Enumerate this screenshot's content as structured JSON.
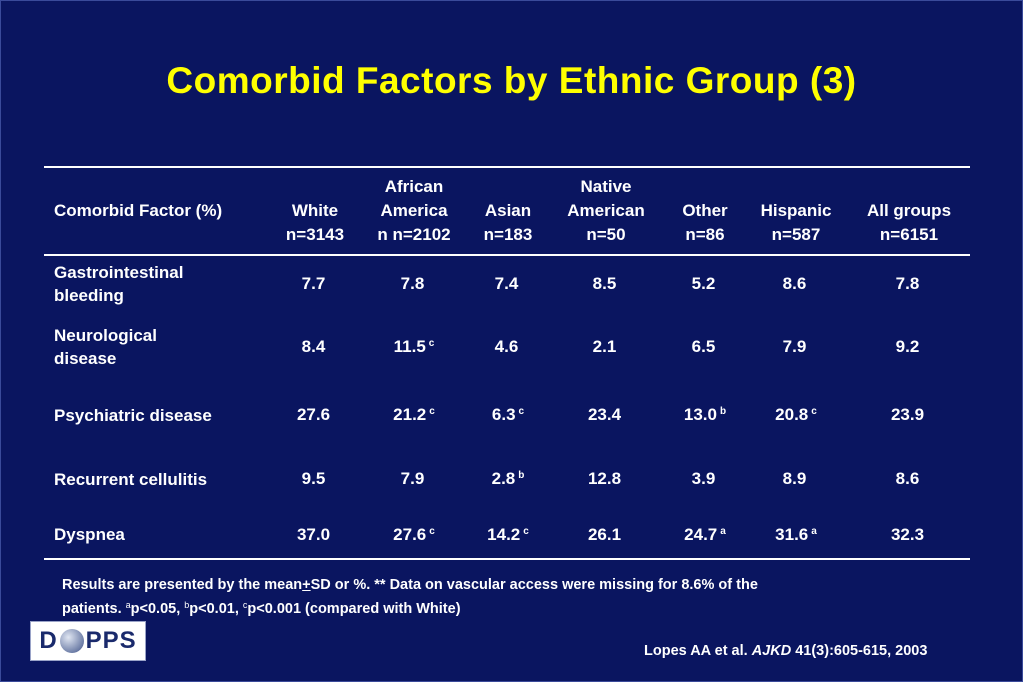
{
  "title": "Comorbid Factors by Ethnic Group (3)",
  "table": {
    "headers": [
      {
        "line1": "Comorbid Factor (%)",
        "line2": ""
      },
      {
        "line1": "White",
        "line2": "n=3143"
      },
      {
        "line1": "African",
        "line2": "America",
        "line3": "n n=2102"
      },
      {
        "line1": "Asian",
        "line2": "n=183"
      },
      {
        "line1": "Native",
        "line2": "American",
        "line3": "n=50"
      },
      {
        "line1": "Other",
        "line2": "n=86"
      },
      {
        "line1": "Hispanic",
        "line2": "n=587"
      },
      {
        "line1": "All groups",
        "line2": "n=6151"
      }
    ],
    "rows": [
      {
        "factor": [
          "Gastrointestinal",
          "bleeding"
        ],
        "values": [
          {
            "v": "7.7",
            "s": ""
          },
          {
            "v": "7.8",
            "s": ""
          },
          {
            "v": "7.4",
            "s": ""
          },
          {
            "v": "8.5",
            "s": ""
          },
          {
            "v": "5.2",
            "s": ""
          },
          {
            "v": "8.6",
            "s": ""
          },
          {
            "v": "7.8",
            "s": ""
          }
        ]
      },
      {
        "factor": [
          "Neurological",
          "disease"
        ],
        "values": [
          {
            "v": "8.4",
            "s": ""
          },
          {
            "v": "11.5",
            "s": "c"
          },
          {
            "v": "4.6",
            "s": ""
          },
          {
            "v": "2.1",
            "s": ""
          },
          {
            "v": "6.5",
            "s": ""
          },
          {
            "v": "7.9",
            "s": ""
          },
          {
            "v": "9.2",
            "s": ""
          }
        ]
      },
      {
        "factor": [
          "Psychiatric disease",
          ""
        ],
        "values": [
          {
            "v": "27.6",
            "s": ""
          },
          {
            "v": "21.2",
            "s": "c"
          },
          {
            "v": "6.3",
            "s": "c"
          },
          {
            "v": "23.4",
            "s": ""
          },
          {
            "v": "13.0",
            "s": "b"
          },
          {
            "v": "20.8",
            "s": "c"
          },
          {
            "v": "23.9",
            "s": ""
          }
        ]
      },
      {
        "factor": [
          "Recurrent cellulitis",
          ""
        ],
        "values": [
          {
            "v": "9.5",
            "s": ""
          },
          {
            "v": "7.9",
            "s": ""
          },
          {
            "v": "2.8",
            "s": "b"
          },
          {
            "v": "12.8",
            "s": ""
          },
          {
            "v": "3.9",
            "s": ""
          },
          {
            "v": "8.9",
            "s": ""
          },
          {
            "v": "8.6",
            "s": ""
          }
        ]
      },
      {
        "factor": [
          "Dyspnea",
          ""
        ],
        "values": [
          {
            "v": "37.0",
            "s": ""
          },
          {
            "v": "27.6",
            "s": "c"
          },
          {
            "v": "14.2",
            "s": "c"
          },
          {
            "v": "26.1",
            "s": ""
          },
          {
            "v": "24.7",
            "s": "a"
          },
          {
            "v": "31.6",
            "s": "a"
          },
          {
            "v": "32.3",
            "s": ""
          }
        ]
      }
    ]
  },
  "footnote": {
    "part1": "Results are presented by the mean",
    "pm": "+",
    "part2": "SD or %. ** Data on vascular access were missing for 8.6% of the",
    "part3": "patients. ",
    "sa": "a",
    "ta": "p<0.05, ",
    "sb": "b",
    "tb": "p<0.01, ",
    "sc": "c",
    "tc": "p<0.001 (compared with White)"
  },
  "logo": {
    "left": "D",
    "right": "PPS"
  },
  "citation": {
    "authors": "Lopes AA et al. ",
    "journal": "AJKD",
    "ref": " 41(3):605-615, 2003"
  }
}
